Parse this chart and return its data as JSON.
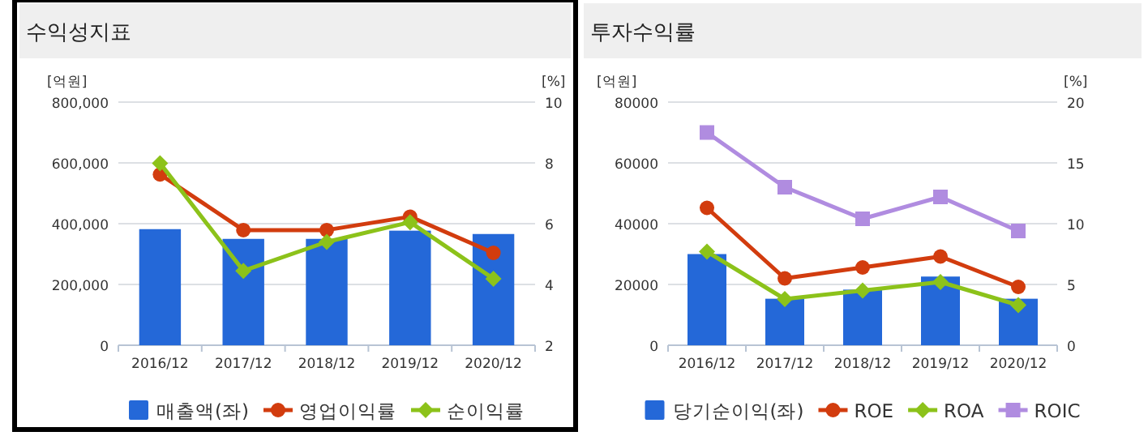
{
  "chart_data": [
    {
      "type": "bar",
      "title": "수익성지표",
      "ylabel": "[억원]",
      "y2label": "[%]",
      "categories": [
        "2016/12",
        "2017/12",
        "2018/12",
        "2019/12",
        "2020/12"
      ],
      "ylim": [
        0,
        800000
      ],
      "yticks": [
        {
          "value": 0,
          "label": "0"
        },
        {
          "value": 200000,
          "label": "200,000"
        },
        {
          "value": 400000,
          "label": "400,000"
        },
        {
          "value": 600000,
          "label": "600,000"
        },
        {
          "value": 800000,
          "label": "800,000"
        }
      ],
      "y2lim": [
        2,
        10
      ],
      "y2ticks": [
        2,
        4,
        6,
        8,
        10
      ],
      "grid": "y",
      "legend": "bottom",
      "series": [
        {
          "name": "매출액(좌)",
          "type": "bar",
          "color": "#2468d8",
          "values": [
            382000,
            350000,
            350000,
            377000,
            366000
          ]
        },
        {
          "name": "영업이익률",
          "type": "line",
          "axis": "y2",
          "marker": "circle",
          "color": "#d23c0e",
          "values": [
            7.62,
            5.79,
            5.79,
            6.23,
            5.04
          ]
        },
        {
          "name": "순이익률",
          "type": "line",
          "axis": "y2",
          "marker": "diamond",
          "color": "#8cc21a",
          "values": [
            7.99,
            4.45,
            5.4,
            6.05,
            4.19
          ]
        }
      ]
    },
    {
      "type": "bar",
      "title": "투자수익률",
      "ylabel": "[억원]",
      "y2label": "[%]",
      "categories": [
        "2016/12",
        "2017/12",
        "2018/12",
        "2019/12",
        "2020/12"
      ],
      "ylim": [
        0,
        80000
      ],
      "yticks": [
        0,
        20000,
        40000,
        60000,
        80000
      ],
      "y2lim": [
        0,
        20
      ],
      "y2ticks": [
        0,
        5,
        10,
        15,
        20
      ],
      "grid": "y",
      "legend": "bottom",
      "series": [
        {
          "name": "당기순이익(좌)",
          "type": "bar",
          "color": "#2468d8",
          "values": [
            30000,
            15300,
            18300,
            22600,
            15300
          ]
        },
        {
          "name": "ROE",
          "type": "line",
          "axis": "y2",
          "marker": "circle",
          "color": "#d23c0e",
          "values": [
            11.3,
            5.5,
            6.4,
            7.3,
            4.8
          ]
        },
        {
          "name": "ROA",
          "type": "line",
          "axis": "y2",
          "marker": "diamond",
          "color": "#8cc21a",
          "values": [
            7.7,
            3.8,
            4.5,
            5.2,
            3.3
          ]
        },
        {
          "name": "ROIC",
          "type": "line",
          "axis": "y2",
          "marker": "square",
          "color": "#b08ce0",
          "values": [
            17.5,
            13.0,
            10.4,
            12.2,
            9.4
          ]
        }
      ]
    }
  ]
}
